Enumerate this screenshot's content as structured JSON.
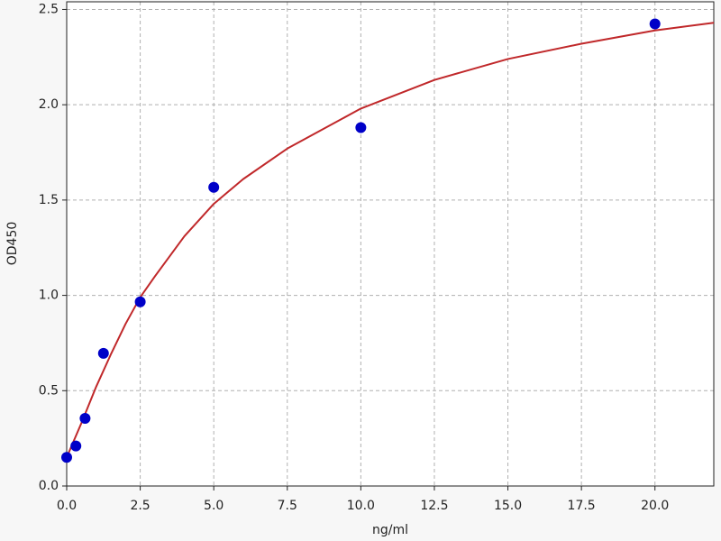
{
  "chart_data": {
    "type": "scatter",
    "xlabel": "ng/ml",
    "ylabel": "OD450",
    "xlim": [
      0,
      22
    ],
    "ylim": [
      0,
      2.54
    ],
    "xticks": [
      {
        "value": 0,
        "label": "0.0"
      },
      2.5,
      {
        "value": 5,
        "label": "5.0"
      },
      7.5,
      {
        "value": 10,
        "label": "10.0"
      },
      12.5,
      {
        "value": 15,
        "label": "15.0"
      },
      17.5,
      {
        "value": 20,
        "label": "20.0"
      }
    ],
    "yticks": [
      {
        "value": 0,
        "label": "0.0"
      },
      0.5,
      {
        "value": 1,
        "label": "1.0"
      },
      1.5,
      {
        "value": 2,
        "label": "2.0"
      },
      2.5
    ],
    "grid": true,
    "series": [
      {
        "type": "line",
        "color": "#c0282a",
        "x": [
          0,
          0.5,
          1,
          1.5,
          2,
          2.5,
          3,
          4,
          5,
          6,
          7.5,
          10,
          12.5,
          15,
          17.5,
          20,
          22
        ],
        "values": [
          0.15,
          0.33,
          0.52,
          0.69,
          0.85,
          0.99,
          1.1,
          1.31,
          1.48,
          1.61,
          1.77,
          1.98,
          2.13,
          2.24,
          2.32,
          2.39,
          2.43
        ]
      },
      {
        "type": "scatter",
        "color": "#0000c8",
        "x": [
          0,
          0.3125,
          0.625,
          1.25,
          2.5,
          5,
          10,
          20
        ],
        "values": [
          0.15,
          0.21,
          0.355,
          0.696,
          0.966,
          1.567,
          1.88,
          2.424
        ]
      }
    ]
  }
}
